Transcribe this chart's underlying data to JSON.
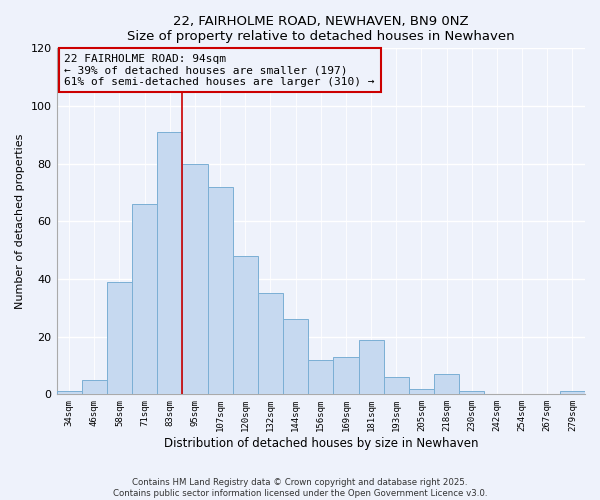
{
  "title": "22, FAIRHOLME ROAD, NEWHAVEN, BN9 0NZ",
  "subtitle": "Size of property relative to detached houses in Newhaven",
  "xlabel": "Distribution of detached houses by size in Newhaven",
  "ylabel": "Number of detached properties",
  "categories": [
    "34sqm",
    "46sqm",
    "58sqm",
    "71sqm",
    "83sqm",
    "95sqm",
    "107sqm",
    "120sqm",
    "132sqm",
    "144sqm",
    "156sqm",
    "169sqm",
    "181sqm",
    "193sqm",
    "205sqm",
    "218sqm",
    "230sqm",
    "242sqm",
    "254sqm",
    "267sqm",
    "279sqm"
  ],
  "values": [
    1,
    5,
    39,
    66,
    91,
    80,
    72,
    48,
    35,
    26,
    12,
    13,
    19,
    6,
    2,
    7,
    1,
    0,
    0,
    0,
    1
  ],
  "bar_color": "#c6d9f0",
  "bar_edge_color": "#7bafd4",
  "vline_x": 4.5,
  "vline_color": "#cc0000",
  "ylim": [
    0,
    120
  ],
  "yticks": [
    0,
    20,
    40,
    60,
    80,
    100,
    120
  ],
  "annotation_title": "22 FAIRHOLME ROAD: 94sqm",
  "annotation_line1": "← 39% of detached houses are smaller (197)",
  "annotation_line2": "61% of semi-detached houses are larger (310) →",
  "box_color": "#cc0000",
  "footer1": "Contains HM Land Registry data © Crown copyright and database right 2025.",
  "footer2": "Contains public sector information licensed under the Open Government Licence v3.0.",
  "background_color": "#eef2fb"
}
